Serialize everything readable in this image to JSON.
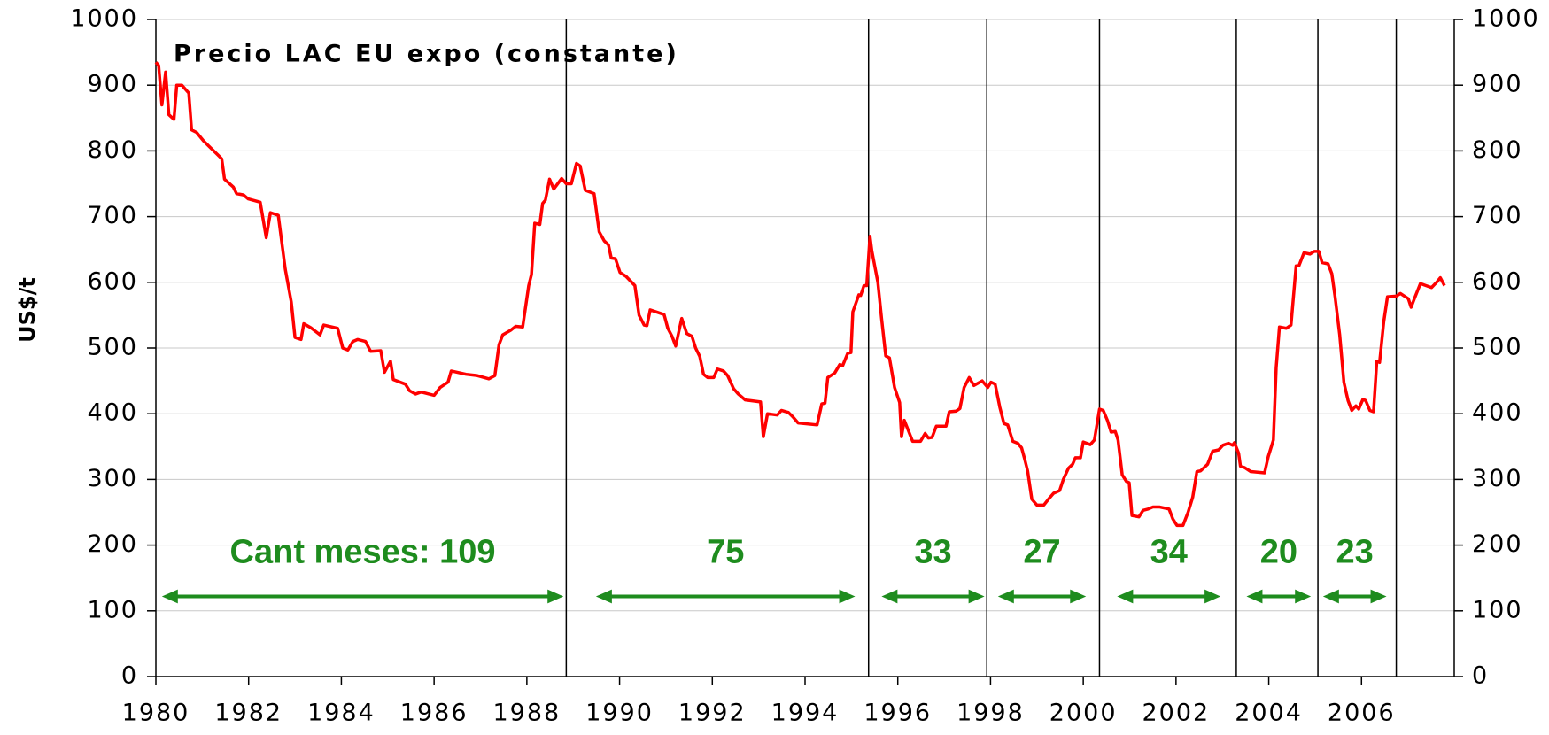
{
  "chart_data": {
    "type": "line",
    "title": "Precio LAC EU expo (constante)",
    "ylabel": "US$/t",
    "color": "#ff0000",
    "xlim": [
      1980,
      2008
    ],
    "xticks": [
      1980,
      1982,
      1984,
      1986,
      1988,
      1990,
      1992,
      1994,
      1996,
      1998,
      2000,
      2002,
      2004,
      2006
    ],
    "ylim": [
      0,
      1000
    ],
    "yticks": [
      0,
      100,
      200,
      300,
      400,
      500,
      600,
      700,
      800,
      900,
      1000
    ],
    "y2lim": [
      0,
      1000
    ],
    "y2ticks": [
      0,
      100,
      200,
      300,
      400,
      500,
      600,
      700,
      800,
      900,
      1000
    ],
    "grid": true,
    "vlines": [
      1988.85,
      1995.37,
      1997.92,
      2000.35,
      2003.3,
      2005.06,
      2006.75
    ],
    "annotations": [
      {
        "text": "Cant meses: 109",
        "from": 1980.13,
        "to": 1988.79
      },
      {
        "text": "75",
        "from": 1989.49,
        "to": 1995.08
      },
      {
        "text": "33",
        "from": 1995.65,
        "to": 1997.87
      },
      {
        "text": "27",
        "from": 1998.16,
        "to": 2000.06
      },
      {
        "text": "34",
        "from": 2000.73,
        "to": 2002.96
      },
      {
        "text": "20",
        "from": 2003.52,
        "to": 2004.91
      },
      {
        "text": "23",
        "from": 2005.17,
        "to": 2006.54
      }
    ],
    "x": [
      1980.0,
      1980.06,
      1980.13,
      1980.21,
      1980.28,
      1980.39,
      1980.45,
      1980.56,
      1980.71,
      1980.77,
      1980.88,
      1981.03,
      1981.35,
      1981.42,
      1981.48,
      1981.67,
      1981.74,
      1981.89,
      1981.99,
      1982.25,
      1982.38,
      1982.47,
      1982.64,
      1982.79,
      1982.92,
      1983.0,
      1983.13,
      1983.19,
      1983.34,
      1983.54,
      1983.62,
      1983.92,
      1984.03,
      1984.14,
      1984.25,
      1984.35,
      1984.52,
      1984.63,
      1984.85,
      1984.93,
      1985.06,
      1985.12,
      1985.38,
      1985.47,
      1985.6,
      1985.72,
      1986.0,
      1986.13,
      1986.3,
      1986.37,
      1986.69,
      1986.93,
      1987.18,
      1987.31,
      1987.4,
      1987.48,
      1987.65,
      1987.76,
      1987.91,
      1988.04,
      1988.1,
      1988.17,
      1988.28,
      1988.34,
      1988.4,
      1988.49,
      1988.58,
      1988.75,
      1988.85,
      1988.96,
      1989.07,
      1989.15,
      1989.26,
      1989.45,
      1989.56,
      1989.67,
      1989.76,
      1989.82,
      1989.91,
      1990.01,
      1990.14,
      1990.33,
      1990.42,
      1990.53,
      1990.59,
      1990.66,
      1990.96,
      1991.04,
      1991.13,
      1991.21,
      1991.34,
      1991.45,
      1991.56,
      1991.64,
      1991.73,
      1991.81,
      1991.9,
      1992.03,
      1992.11,
      1992.24,
      1992.33,
      1992.46,
      1992.56,
      1992.71,
      1993.04,
      1993.1,
      1993.19,
      1993.4,
      1993.49,
      1993.64,
      1993.74,
      1993.85,
      1994.26,
      1994.36,
      1994.43,
      1994.49,
      1994.64,
      1994.75,
      1994.81,
      1994.92,
      1994.99,
      1995.03,
      1995.16,
      1995.2,
      1995.27,
      1995.33,
      1995.4,
      1995.44,
      1995.57,
      1995.65,
      1995.74,
      1995.82,
      1995.93,
      1996.04,
      1996.08,
      1996.14,
      1996.32,
      1996.49,
      1996.59,
      1996.66,
      1996.74,
      1996.83,
      1997.04,
      1997.11,
      1997.26,
      1997.34,
      1997.43,
      1997.54,
      1997.64,
      1997.82,
      1997.94,
      1998.01,
      1998.1,
      1998.2,
      1998.29,
      1998.37,
      1998.48,
      1998.59,
      1998.67,
      1998.74,
      1998.8,
      1998.89,
      1999.0,
      1999.15,
      1999.25,
      1999.36,
      1999.49,
      1999.57,
      1999.68,
      1999.77,
      1999.83,
      1999.94,
      2000.0,
      2000.15,
      2000.24,
      2000.35,
      2000.43,
      2000.52,
      2000.6,
      2000.69,
      2000.75,
      2000.84,
      2000.93,
      2000.99,
      2001.05,
      2001.2,
      2001.29,
      2001.4,
      2001.5,
      2001.65,
      2001.85,
      2001.93,
      2002.02,
      2002.15,
      2002.26,
      2002.36,
      2002.45,
      2002.53,
      2002.68,
      2002.79,
      2002.92,
      2003.01,
      2003.13,
      2003.22,
      2003.26,
      2003.35,
      2003.39,
      2003.48,
      2003.61,
      2003.91,
      2003.99,
      2004.1,
      2004.16,
      2004.23,
      2004.38,
      2004.48,
      2004.59,
      2004.65,
      2004.76,
      2004.89,
      2004.98,
      2005.08,
      2005.15,
      2005.28,
      2005.36,
      2005.43,
      2005.53,
      2005.62,
      2005.71,
      2005.79,
      2005.88,
      2005.94,
      2006.03,
      2006.09,
      2006.18,
      2006.26,
      2006.33,
      2006.39,
      2006.48,
      2006.56,
      2006.75,
      2006.84,
      2007.01,
      2007.07,
      2007.14,
      2007.27,
      2007.51,
      2007.62,
      2007.7,
      2007.79
    ],
    "values": [
      935,
      930,
      870,
      920,
      855,
      848,
      900,
      900,
      888,
      832,
      828,
      815,
      793,
      788,
      757,
      745,
      735,
      733,
      727,
      722,
      668,
      706,
      702,
      620,
      570,
      516,
      513,
      537,
      531,
      520,
      535,
      530,
      500,
      497,
      510,
      513,
      510,
      495,
      496,
      463,
      480,
      452,
      445,
      435,
      430,
      433,
      428,
      440,
      448,
      465,
      460,
      458,
      453,
      458,
      505,
      520,
      527,
      533,
      532,
      595,
      612,
      690,
      688,
      720,
      725,
      757,
      742,
      758,
      750,
      750,
      781,
      777,
      740,
      735,
      677,
      663,
      657,
      637,
      636,
      615,
      609,
      595,
      550,
      535,
      534,
      558,
      551,
      530,
      518,
      503,
      545,
      522,
      518,
      500,
      487,
      460,
      455,
      455,
      468,
      465,
      458,
      438,
      430,
      421,
      418,
      365,
      400,
      398,
      405,
      402,
      395,
      386,
      383,
      415,
      416,
      455,
      462,
      475,
      473,
      492,
      493,
      555,
      581,
      580,
      595,
      595,
      670,
      648,
      600,
      545,
      488,
      485,
      440,
      417,
      365,
      390,
      358,
      358,
      370,
      363,
      364,
      381,
      381,
      403,
      404,
      408,
      440,
      455,
      443,
      450,
      440,
      448,
      445,
      410,
      385,
      383,
      358,
      355,
      348,
      330,
      313,
      270,
      261,
      261,
      270,
      279,
      283,
      300,
      317,
      323,
      333,
      333,
      357,
      353,
      360,
      407,
      405,
      390,
      372,
      373,
      360,
      307,
      297,
      295,
      245,
      243,
      253,
      255,
      258,
      258,
      255,
      240,
      230,
      230,
      250,
      273,
      312,
      313,
      323,
      343,
      345,
      352,
      355,
      352,
      356,
      340,
      320,
      318,
      312,
      310,
      335,
      360,
      470,
      532,
      530,
      535,
      625,
      625,
      645,
      643,
      647,
      647,
      630,
      628,
      613,
      578,
      520,
      448,
      420,
      405,
      412,
      407,
      422,
      420,
      405,
      403,
      480,
      478,
      540,
      578,
      579,
      583,
      575,
      562,
      575,
      598,
      592,
      600,
      607,
      595
    ]
  }
}
